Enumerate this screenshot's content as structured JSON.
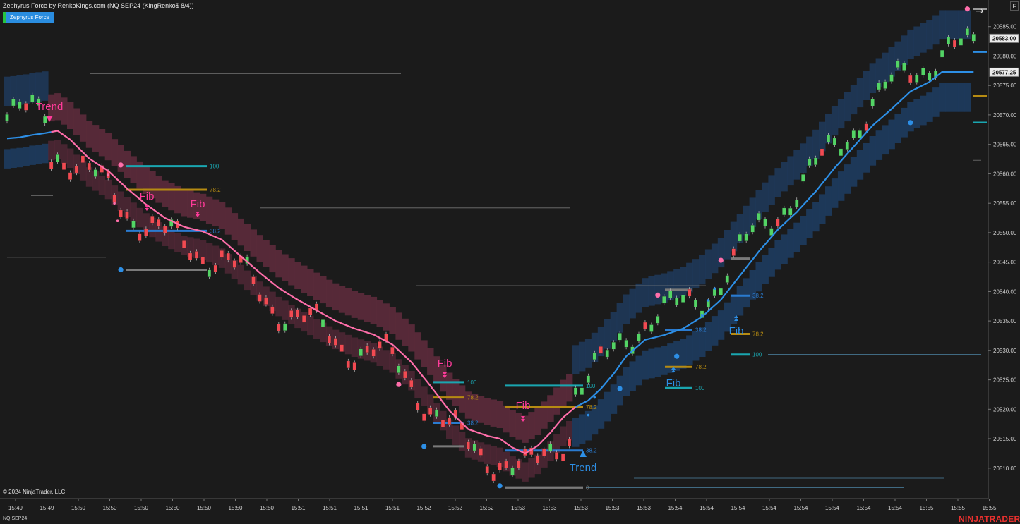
{
  "header": {
    "title": "Zephyrus Force by RenkoKings.com (NQ SEP24 (KingRenko$ 8/4))",
    "indicator_tag": "Zephyrus Force",
    "f_button": "F",
    "copyright": "© 2024 NinjaTrader, LLC",
    "symbol": "NQ SEP24",
    "brand_a": "NINJA",
    "brand_b": "TRADER"
  },
  "chart_data": {
    "type": "line",
    "title": "",
    "xlabel": "",
    "ylabel": "",
    "ylim": [
      20505.5,
      20590
    ],
    "x_tick_labels": [
      "15:49",
      "15:49",
      "15:50",
      "15:50",
      "15:50",
      "15:50",
      "15:50",
      "15:50",
      "15:50",
      "15:51",
      "15:51",
      "15:51",
      "15:51",
      "15:52",
      "15:52",
      "15:52",
      "15:53",
      "15:53",
      "15:53",
      "15:53",
      "15:53",
      "15:54",
      "15:54",
      "15:54",
      "15:54",
      "15:54",
      "15:54",
      "15:54",
      "15:54",
      "15:55",
      "15:55",
      "15:55"
    ],
    "y_ticks": [
      20510,
      20515,
      20520,
      20525,
      20530,
      20535,
      20540,
      20545,
      20550,
      20555,
      20560,
      20565,
      20570,
      20575,
      20580,
      20585
    ],
    "price_labels": [
      {
        "value": 20583.0,
        "text": "20583.00"
      },
      {
        "value": 20577.25,
        "text": "20577.25"
      }
    ],
    "colors": {
      "up": "#53d465",
      "down": "#f24a52",
      "bull_line": "#2d8fe6",
      "bear_line": "#ff6eaa",
      "bull_band": "#1e3a5c",
      "bear_band": "#5a2a3a",
      "fib100": "#1aa6b0",
      "fib78": "#b68b12",
      "fib38": "#2a7bd0",
      "fib0": "#7a7a7a",
      "pink_label": "#ff3b9a",
      "blue_label": "#2d8fe6"
    },
    "series": [
      {
        "name": "",
        "values": [
          [
            0,
            20566
          ],
          [
            2,
            20566.2
          ],
          [
            4,
            20566.6
          ],
          [
            6,
            20566.9
          ],
          [
            8,
            20567.3
          ],
          [
            10,
            20565.8
          ],
          [
            13,
            20562.6
          ],
          [
            16,
            20560.5
          ],
          [
            19,
            20557.5
          ],
          [
            22,
            20554.8
          ],
          [
            25,
            20552.5
          ],
          [
            28,
            20551.0
          ],
          [
            31,
            20550.2
          ],
          [
            34,
            20548.8
          ],
          [
            37,
            20546.0
          ],
          [
            40,
            20543.2
          ],
          [
            43,
            20540.6
          ],
          [
            46,
            20538.6
          ],
          [
            49,
            20536.8
          ],
          [
            52,
            20535.0
          ],
          [
            55,
            20533.7
          ],
          [
            58,
            20532.7
          ],
          [
            61,
            20531.0
          ],
          [
            64,
            20528.0
          ],
          [
            67,
            20524.0
          ],
          [
            70,
            20519.8
          ],
          [
            73,
            20516.6
          ],
          [
            76,
            20515.5
          ],
          [
            78,
            20515.0
          ],
          [
            80,
            20513.5
          ],
          [
            82,
            20512.5
          ],
          [
            84,
            20513.8
          ],
          [
            86,
            20516.0
          ],
          [
            88,
            20518.6
          ],
          [
            90,
            20520.4
          ],
          [
            92,
            20521.5
          ],
          [
            94,
            20523.5
          ],
          [
            96,
            20526.0
          ],
          [
            98,
            20529.0
          ],
          [
            101,
            20531.8
          ],
          [
            104,
            20532.6
          ],
          [
            107,
            20533.7
          ],
          [
            110,
            20535.7
          ],
          [
            113,
            20538.6
          ],
          [
            116,
            20542.7
          ],
          [
            119,
            20546.8
          ],
          [
            122,
            20550.5
          ],
          [
            125,
            20553.5
          ],
          [
            128,
            20557.0
          ],
          [
            131,
            20561.0
          ],
          [
            134,
            20564.6
          ],
          [
            137,
            20568.2
          ],
          [
            140,
            20571.0
          ],
          [
            143,
            20574.0
          ],
          [
            146,
            20575.6
          ],
          [
            148,
            20577.3
          ]
        ]
      }
    ],
    "fib_levels": [
      {
        "label": "100",
        "value": 20561.3
      },
      {
        "label": "78.2",
        "value": 20557.3
      },
      {
        "label": "38.2",
        "value": 20550.3
      },
      {
        "label": "100",
        "value": 20524.6
      },
      {
        "label": "78.2",
        "value": 20522.0
      },
      {
        "label": "38.2",
        "value": 20517.7
      },
      {
        "label": "100",
        "value": 20524.0
      },
      {
        "label": "78.2",
        "value": 20520.4
      },
      {
        "label": "38.2",
        "value": 20513.0
      },
      {
        "label": "0",
        "value": 20506.7
      },
      {
        "label": "38.2",
        "value": 20533.5
      },
      {
        "label": "78.2",
        "value": 20527.2
      },
      {
        "label": "100",
        "value": 20523.6
      },
      {
        "label": "38.2",
        "value": 20539.3
      },
      {
        "label": "78.2",
        "value": 20532.8
      },
      {
        "label": "100",
        "value": 20529.3
      }
    ],
    "annotations": [
      "Trend",
      "Fib",
      "Fib",
      "Fib",
      "Fib",
      "Trend",
      "Fib",
      "Fib"
    ]
  }
}
